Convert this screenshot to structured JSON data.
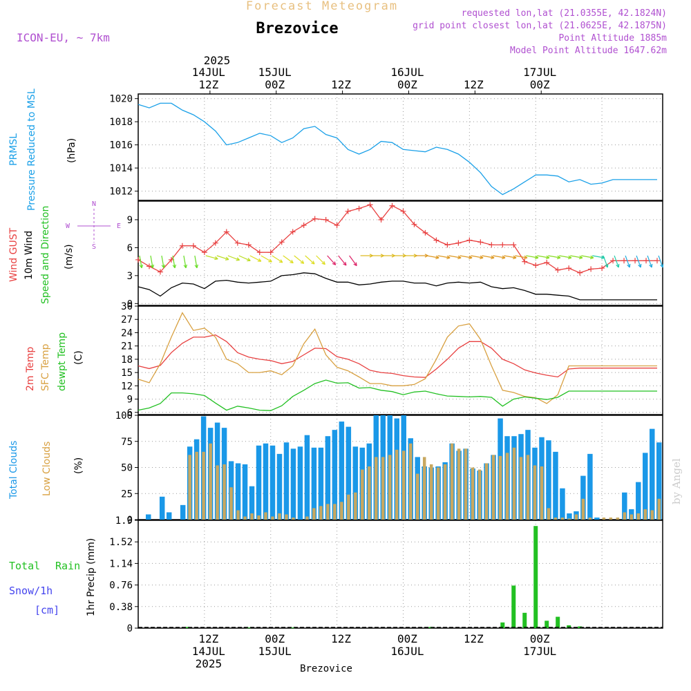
{
  "header": {
    "title_top": "Forecast Meteogram",
    "location": "Brezovice",
    "model": "ICON-EU, ~ 7km",
    "requested": "requested lon,lat (21.0355E, 42.1824N)",
    "grid_point": "grid point closest lon,lat (21.0625E, 42.1875N)",
    "point_alt": "Point Altitude 1885m",
    "model_alt": "Model Point Altitude 1647.62m",
    "footer_location": "Brezovice",
    "watermark": "by Angel",
    "year": "2025"
  },
  "time_axis": {
    "top_date_labels": [
      "14JUL",
      "15JUL",
      "16JUL",
      "17JUL"
    ],
    "top_hour_labels": [
      "12Z",
      "00Z",
      "12Z",
      "00Z",
      "12Z",
      "00Z"
    ],
    "bottom_hour_labels": [
      "12Z",
      "00Z",
      "12Z",
      "00Z",
      "12Z",
      "00Z"
    ],
    "bottom_date_labels": [
      "14JUL",
      "15JUL",
      "16JUL",
      "17JUL"
    ]
  },
  "panel_labels": {
    "pressure": [
      "PRMSL",
      "Pressure Reduced to MSL",
      "(hPa)"
    ],
    "wind": [
      "Wind GUST",
      "10m Wind",
      "Speed and Direction",
      "(m/s)"
    ],
    "compass": [
      "N",
      "W",
      "E",
      "S"
    ],
    "temp": [
      "2m Temp",
      "SFC Temp",
      "dewpt Temp",
      "(C)"
    ],
    "clouds": [
      "Total Clouds",
      "Low Clouds",
      "(%)"
    ],
    "precip": [
      "Total",
      "Rain",
      "Snow/1h",
      "[cm]",
      "1hr Precip (mm)"
    ]
  },
  "colors": {
    "pressure": "#1aa0e8",
    "gust": "#e84040",
    "wind": "#000000",
    "temp2m": "#e84040",
    "sfc": "#d8a040",
    "dew": "#22c022",
    "total_clouds": "#1a98e8",
    "low_clouds": "#c8a860",
    "rain": "#22c022",
    "snow": "#4444ee",
    "header_purple": "#b050d0",
    "header_orange": "#e8c080"
  },
  "chart_data": [
    {
      "type": "line",
      "panel": "pressure",
      "series_name": "PRMSL Pressure Reduced to MSL",
      "ylabel": "(hPa)",
      "yticks": [
        1012,
        1014,
        1016,
        1018,
        1020
      ],
      "ylim": [
        1011.2,
        1020.4
      ],
      "x_hours": [
        0,
        2,
        4,
        6,
        8,
        10,
        12,
        14,
        16,
        18,
        20,
        22,
        24,
        26,
        28,
        30,
        32,
        34,
        36,
        38,
        40,
        42,
        44,
        46,
        48,
        50,
        52,
        54,
        56,
        58,
        60,
        62,
        64,
        66,
        68,
        70,
        72,
        74,
        76,
        78,
        80,
        82,
        84,
        86,
        88,
        90,
        92,
        94
      ],
      "values": [
        1019.5,
        1019.2,
        1019.6,
        1019.6,
        1019.0,
        1018.6,
        1018.0,
        1017.2,
        1016.0,
        1016.2,
        1016.6,
        1017.0,
        1016.8,
        1016.2,
        1016.6,
        1017.4,
        1017.6,
        1016.9,
        1016.6,
        1015.6,
        1015.2,
        1015.6,
        1016.3,
        1016.2,
        1015.6,
        1015.5,
        1015.4,
        1015.8,
        1015.6,
        1015.2,
        1014.5,
        1013.6,
        1012.4,
        1011.7,
        1012.2,
        1012.8,
        1013.4,
        1013.4,
        1013.3,
        1012.8,
        1013.0,
        1012.6,
        1012.7,
        1013.0,
        1013.0,
        1013.0,
        1013.0,
        1013.0
      ]
    },
    {
      "type": "line",
      "panel": "wind",
      "ylabel": "(m/s)",
      "yticks": [
        0,
        3,
        6,
        9
      ],
      "ylim": [
        -0.2,
        11.0
      ],
      "series": [
        {
          "name": "Wind GUST",
          "x_hours": [
            0,
            2,
            4,
            6,
            8,
            10,
            12,
            14,
            16,
            18,
            20,
            22,
            24,
            26,
            28,
            30,
            32,
            34,
            36,
            38,
            40,
            42,
            44,
            46,
            48,
            50,
            52,
            54,
            56,
            58,
            60,
            62,
            64,
            66,
            68,
            70,
            72,
            74,
            76,
            78,
            80,
            82,
            84,
            86,
            88,
            90,
            92,
            94
          ],
          "values": [
            4.7,
            4.0,
            3.4,
            4.7,
            6.2,
            6.2,
            5.5,
            6.5,
            7.7,
            6.5,
            6.3,
            5.5,
            5.5,
            6.6,
            7.7,
            8.4,
            9.1,
            9.0,
            8.4,
            9.9,
            10.2,
            10.6,
            9.0,
            10.5,
            9.9,
            8.5,
            7.6,
            6.8,
            6.3,
            6.5,
            6.8,
            6.6,
            6.3,
            6.3,
            6.3,
            4.5,
            4.1,
            4.4,
            3.6,
            3.8,
            3.3,
            3.7,
            3.8,
            4.6,
            4.6,
            4.6,
            4.6,
            4.6
          ]
        },
        {
          "name": "10m Wind",
          "x_hours": [
            0,
            2,
            4,
            6,
            8,
            10,
            12,
            14,
            16,
            18,
            20,
            22,
            24,
            26,
            28,
            30,
            32,
            34,
            36,
            38,
            40,
            42,
            44,
            46,
            48,
            50,
            52,
            54,
            56,
            58,
            60,
            62,
            64,
            66,
            68,
            70,
            72,
            74,
            76,
            78,
            80,
            82,
            84,
            86,
            88,
            90,
            92,
            94
          ],
          "values": [
            1.8,
            1.5,
            0.8,
            1.7,
            2.2,
            2.1,
            1.6,
            2.4,
            2.5,
            2.3,
            2.2,
            2.3,
            2.4,
            3.0,
            3.1,
            3.3,
            3.2,
            2.7,
            2.3,
            2.3,
            2.0,
            2.1,
            2.3,
            2.4,
            2.4,
            2.2,
            2.2,
            1.9,
            2.2,
            2.3,
            2.2,
            2.3,
            1.8,
            1.6,
            1.7,
            1.4,
            1.0,
            1.0,
            0.9,
            0.8,
            0.4,
            0.4,
            0.4,
            0.4,
            0.4,
            0.4,
            0.4,
            0.4
          ]
        }
      ]
    },
    {
      "type": "line",
      "panel": "temperature",
      "ylabel": "(C)",
      "yticks": [
        6,
        9,
        12,
        15,
        18,
        21,
        24,
        27,
        30
      ],
      "ylim": [
        5.5,
        30.0
      ],
      "series": [
        {
          "name": "2m Temp",
          "x_hours": [
            0,
            2,
            4,
            6,
            8,
            10,
            12,
            14,
            16,
            18,
            20,
            22,
            24,
            26,
            28,
            30,
            32,
            34,
            36,
            38,
            40,
            42,
            44,
            46,
            48,
            50,
            52,
            54,
            56,
            58,
            60,
            62,
            64,
            66,
            68,
            70,
            72,
            74,
            76,
            78,
            80,
            82,
            84,
            86,
            88,
            90,
            92,
            94
          ],
          "values": [
            16.5,
            15.9,
            16.6,
            19.5,
            21.6,
            23.0,
            23.0,
            23.5,
            22.0,
            19.5,
            18.5,
            18.0,
            17.7,
            17.0,
            17.5,
            19.0,
            20.5,
            20.4,
            18.6,
            18.0,
            17.0,
            15.5,
            15.0,
            14.8,
            14.3,
            14.0,
            13.9,
            15.8,
            18.0,
            20.5,
            22.0,
            22.0,
            20.5,
            18.0,
            17.0,
            15.6,
            14.9,
            14.4,
            14.0,
            15.8,
            16.0,
            16.0,
            16.0,
            16.0,
            16.0,
            16.0,
            16.0,
            16.0
          ]
        },
        {
          "name": "SFC Temp",
          "x_hours": [
            0,
            2,
            4,
            6,
            8,
            10,
            12,
            14,
            16,
            18,
            20,
            22,
            24,
            26,
            28,
            30,
            32,
            34,
            36,
            38,
            40,
            42,
            44,
            46,
            48,
            50,
            52,
            54,
            56,
            58,
            60,
            62,
            64,
            66,
            68,
            70,
            72,
            74,
            76,
            78,
            80,
            82,
            84,
            86,
            88,
            90,
            92,
            94
          ],
          "values": [
            13.5,
            12.7,
            17.0,
            23.0,
            28.5,
            24.5,
            25.0,
            23.0,
            18.0,
            17.0,
            15.0,
            15.0,
            15.4,
            14.5,
            16.5,
            21.5,
            24.8,
            19.0,
            16.2,
            15.4,
            14.0,
            12.5,
            12.5,
            12.0,
            12.0,
            12.3,
            13.6,
            18.0,
            23.0,
            25.5,
            26.0,
            22.5,
            16.5,
            11.0,
            10.5,
            9.6,
            9.3,
            8.0,
            10.0,
            16.5,
            16.5,
            16.5,
            16.5,
            16.5,
            16.5,
            16.5,
            16.5,
            16.5
          ]
        },
        {
          "name": "dewpt Temp",
          "x_hours": [
            0,
            2,
            4,
            6,
            8,
            10,
            12,
            14,
            16,
            18,
            20,
            22,
            24,
            26,
            28,
            30,
            32,
            34,
            36,
            38,
            40,
            42,
            44,
            46,
            48,
            50,
            52,
            54,
            56,
            58,
            60,
            62,
            64,
            66,
            68,
            70,
            72,
            74,
            76,
            78,
            80,
            82,
            84,
            86,
            88,
            90,
            92,
            94
          ],
          "values": [
            6.5,
            7.0,
            8.0,
            10.4,
            10.4,
            10.2,
            9.8,
            8.1,
            6.5,
            7.4,
            7.0,
            6.5,
            6.4,
            7.5,
            9.6,
            11.0,
            12.5,
            13.3,
            12.6,
            12.7,
            11.5,
            11.6,
            11.0,
            10.7,
            10.0,
            10.6,
            10.8,
            10.2,
            9.7,
            9.6,
            9.5,
            9.6,
            9.4,
            7.4,
            9.0,
            9.5,
            9.2,
            8.9,
            9.4,
            10.8,
            10.8,
            10.8,
            10.8,
            10.8,
            10.8,
            10.8,
            10.8,
            10.8
          ]
        }
      ]
    },
    {
      "type": "bar",
      "panel": "clouds",
      "ylabel": "(%)",
      "yticks": [
        0,
        25,
        50,
        75,
        100
      ],
      "ylim": [
        0,
        100
      ],
      "series": [
        {
          "name": "Total Clouds",
          "values": [
            0,
            5,
            0,
            22,
            7,
            0,
            14,
            70,
            77,
            99,
            88,
            93,
            88,
            56,
            54,
            53,
            32,
            71,
            73,
            71,
            63,
            74,
            68,
            70,
            81,
            69,
            69,
            80,
            86,
            94,
            89,
            70,
            69,
            73,
            100,
            100,
            100,
            97,
            100,
            78,
            60,
            51,
            50,
            51,
            55,
            73,
            66,
            68,
            49,
            47,
            54,
            62,
            97,
            80,
            80,
            82,
            86,
            69,
            79,
            76,
            65,
            30,
            6,
            8,
            42,
            63,
            2,
            0,
            0,
            0,
            26,
            10,
            36,
            64,
            87,
            74
          ]
        },
        {
          "name": "Low Clouds",
          "values": [
            0,
            0,
            0,
            0,
            0,
            0,
            0,
            62,
            65,
            65,
            73,
            52,
            53,
            31,
            9,
            3,
            6,
            4,
            7,
            3,
            6,
            5,
            2,
            0,
            3,
            11,
            13,
            15,
            15,
            17,
            24,
            26,
            48,
            51,
            60,
            60,
            62,
            67,
            66,
            73,
            44,
            60,
            53,
            50,
            53,
            73,
            68,
            68,
            50,
            48,
            54,
            62,
            61,
            64,
            69,
            60,
            62,
            52,
            51,
            11,
            2,
            2,
            1,
            5,
            20,
            2,
            0,
            2,
            2,
            2,
            7,
            5,
            6,
            10,
            9,
            20
          ]
        }
      ]
    },
    {
      "type": "bar",
      "panel": "precipitation",
      "ylabel": "1hr Precip (mm)",
      "yticks": [
        0,
        0.38,
        0.76,
        1.14,
        1.52,
        1.9
      ],
      "ylim": [
        0,
        1.9
      ],
      "series": [
        {
          "name": "Total Rain",
          "x_hours": [
            9,
            20,
            28,
            53,
            66,
            68,
            70,
            72,
            74,
            76,
            78,
            80,
            82,
            84
          ],
          "values": [
            0.02,
            0.01,
            0.01,
            0.02,
            0.1,
            0.75,
            0.27,
            1.8,
            0.13,
            0.2,
            0.05,
            0.03,
            0.0,
            0.0
          ]
        }
      ]
    }
  ]
}
